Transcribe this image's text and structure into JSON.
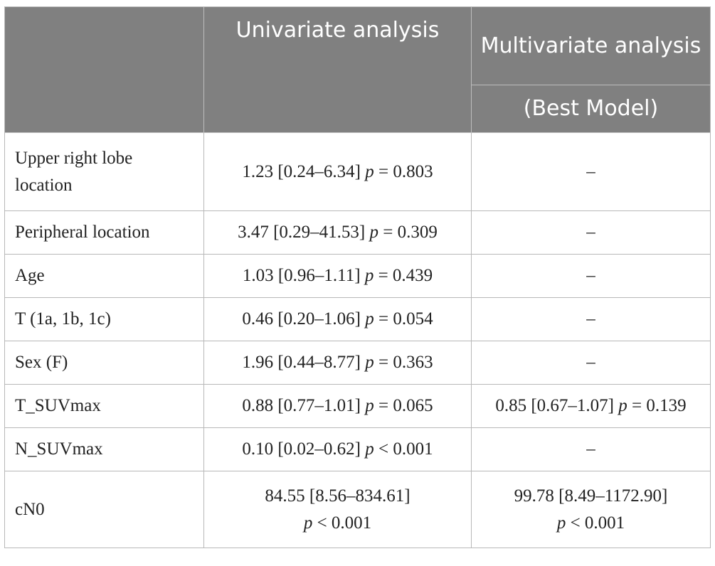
{
  "header": {
    "univariate": "Univariate analysis",
    "multivariate": "Multivariate analysis",
    "best_model": "(Best Model)"
  },
  "rows": [
    {
      "label": "Upper right lobe location",
      "uni": {
        "ci": "1.23 [0.24–6.34]",
        "p": "p",
        "pv": "= 0.803"
      },
      "multi": "–"
    },
    {
      "label": "Peripheral location",
      "uni": {
        "ci": "3.47 [0.29–41.53]",
        "p": "p",
        "pv": "= 0.309"
      },
      "multi": "–"
    },
    {
      "label": "Age",
      "uni": {
        "ci": "1.03 [0.96–1.11]",
        "p": "p",
        "pv": "= 0.439"
      },
      "multi": "–"
    },
    {
      "label": "T (1a, 1b, 1c)",
      "uni": {
        "ci": "0.46 [0.20–1.06]",
        "p": "p",
        "pv": "= 0.054"
      },
      "multi": "–"
    },
    {
      "label": "Sex (F)",
      "uni": {
        "ci": "1.96 [0.44–8.77]",
        "p": "p",
        "pv": "= 0.363"
      },
      "multi": "–"
    },
    {
      "label": "T_SUVmax",
      "uni": {
        "ci": "0.88 [0.77–1.01]",
        "p": "p",
        "pv": "= 0.065"
      },
      "multi_val": {
        "ci": "0.85 [0.67–1.07]",
        "p": "p",
        "pv": "= 0.139"
      }
    },
    {
      "label": "N_SUVmax",
      "uni": {
        "ci": "0.10 [0.02–0.62]",
        "p": "p",
        "pv": "< 0.001"
      },
      "multi": "–"
    },
    {
      "label": "cN0",
      "uni": {
        "ci": "84.55 [8.56–834.61]",
        "p": "p",
        "pv": "< 0.001"
      },
      "multi_val": {
        "ci": "99.78 [8.49–1172.90]",
        "p": "p",
        "pv": "< 0.001"
      }
    }
  ]
}
